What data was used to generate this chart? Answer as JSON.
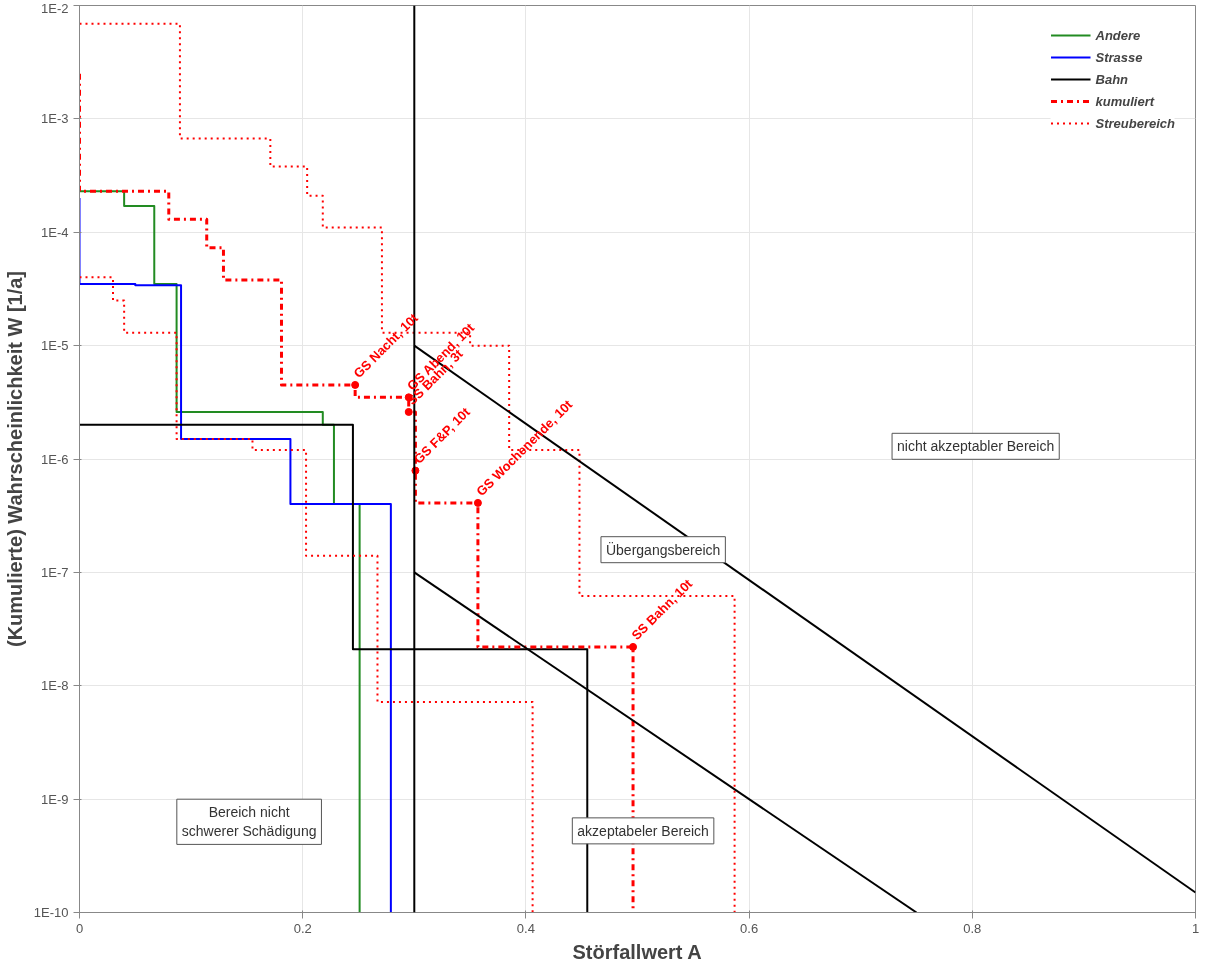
{
  "chart_data": {
    "type": "line",
    "xlabel": "Störfallwert A",
    "ylabel": "(Kumulierte) Wahrscheinlichkeit W [1/a]",
    "log": "y",
    "xlim": [
      0,
      1
    ],
    "ylim": [
      1e-10,
      0.01
    ],
    "xticks": [
      0,
      0.2,
      0.4,
      0.6,
      0.8,
      1
    ],
    "yticks": [
      {
        "value": 1e-10,
        "label": "1E-10"
      },
      {
        "value": 1e-09,
        "label": "1E-9"
      },
      {
        "value": 1e-08,
        "label": "1E-8"
      },
      {
        "value": 1e-07,
        "label": "1E-7"
      },
      {
        "value": 1e-06,
        "label": "1E-6"
      },
      {
        "value": 1e-05,
        "label": "1E-5"
      },
      {
        "value": 0.0001,
        "label": "1E-4"
      },
      {
        "value": 0.001,
        "label": "1E-3"
      },
      {
        "value": 0.01,
        "label": "1E-2"
      }
    ],
    "grid": true,
    "legend": "top right",
    "series": [
      {
        "name": "Andere",
        "color": "#228b22",
        "line_style": "solid",
        "x": [
          0,
          0.04,
          0.04,
          0.067,
          0.067,
          0.087,
          0.087,
          0.218,
          0.218,
          0.228,
          0.228,
          0.251,
          0.251
        ],
        "values": [
          0.00023,
          0.00023,
          0.00017,
          0.00017,
          3.5e-05,
          3.5e-05,
          2.6e-06,
          2.6e-06,
          2e-06,
          2e-06,
          4e-07,
          4e-07,
          1e-10
        ]
      },
      {
        "name": "Strasse",
        "color": "#0000ff",
        "line_style": "solid",
        "x": [
          0,
          0,
          0.05,
          0.05,
          0.091,
          0.091,
          0.189,
          0.189,
          0.279,
          0.279
        ],
        "values": [
          0.0002,
          3.5e-05,
          3.5e-05,
          3.4e-05,
          3.4e-05,
          1.5e-06,
          1.5e-06,
          4e-07,
          4e-07,
          1e-10
        ]
      },
      {
        "name": "Bahn",
        "color": "#000000",
        "line_style": "solid",
        "x": [
          0,
          0.245,
          0.245,
          0.455,
          0.455
        ],
        "values": [
          2e-06,
          2e-06,
          2.1e-08,
          2.1e-08,
          1e-10
        ]
      },
      {
        "name": "kumuliert",
        "color": "#ff0000",
        "line_style": "dashdot",
        "x": [
          0,
          0,
          0.08,
          0.08,
          0.114,
          0.114,
          0.129,
          0.129,
          0.181,
          0.181,
          0.247,
          0.247,
          0.295,
          0.295,
          0.301,
          0.301,
          0.301,
          0.357,
          0.357,
          0.496,
          0.496
        ],
        "values": [
          0.0025,
          0.00023,
          0.00023,
          0.00013,
          0.00013,
          7.3e-05,
          7.3e-05,
          3.8e-05,
          3.8e-05,
          4.5e-06,
          4.5e-06,
          3.5e-06,
          3.5e-06,
          2.6e-06,
          2.6e-06,
          7.9e-07,
          4.1e-07,
          4.1e-07,
          2.2e-08,
          2.2e-08,
          1e-10
        ]
      },
      {
        "name": "Streubereich",
        "color": "#ff0000",
        "line_style": "dotted",
        "x": [
          0,
          0.09,
          0.09,
          0.171,
          0.171,
          0.204,
          0.204,
          0.218,
          0.218,
          0.271,
          0.271,
          0.35,
          0.35,
          0.385,
          0.385,
          0.448,
          0.448,
          0.587,
          0.587
        ],
        "values": [
          0.0069,
          0.0069,
          0.00067,
          0.00067,
          0.00038,
          0.00038,
          0.00021,
          0.00021,
          0.00011,
          0.00011,
          1.3e-05,
          1.3e-05,
          1e-05,
          1e-05,
          1.2e-06,
          1.2e-06,
          6.2e-08,
          6.2e-08,
          1e-10
        ]
      },
      {
        "color": "#ff0000",
        "line_style": "dotted",
        "x": [
          0,
          0.03,
          0.03,
          0.04,
          0.04,
          0.087,
          0.087,
          0.155,
          0.155,
          0.203,
          0.203,
          0.267,
          0.267,
          0.406,
          0.406
        ],
        "values": [
          4e-05,
          4e-05,
          2.5e-05,
          2.5e-05,
          1.3e-05,
          1.3e-05,
          1.5e-06,
          1.5e-06,
          1.2e-06,
          1.2e-06,
          1.4e-07,
          1.4e-07,
          7.2e-09,
          7.2e-09,
          1e-10
        ]
      },
      {
        "color": "#000000",
        "line_style": "solid",
        "x": [
          0.3,
          1
        ],
        "values": [
          1e-05,
          1.5e-10
        ]
      },
      {
        "color": "#000000",
        "line_style": "solid",
        "x": [
          0.3,
          0.75
        ],
        "values": [
          1e-07,
          1e-10
        ]
      }
    ],
    "ref_lines": [
      {
        "axis": "x",
        "value": 0.3,
        "color": "#000000",
        "line_style": "solid"
      }
    ],
    "annotations": [
      {
        "text": "GS Nacht, 10t",
        "x": 0.247,
        "y": 4.5e-06
      },
      {
        "text": "GS Abend, 10t",
        "x": 0.295,
        "y": 3.5e-06
      },
      {
        "text": "SS Bahn, 3t",
        "x": 0.295,
        "y": 2.6e-06
      },
      {
        "text": "GS F&P, 10t",
        "x": 0.301,
        "y": 7.9e-07
      },
      {
        "text": "GS Wochenende, 10t",
        "x": 0.357,
        "y": 4.1e-07
      },
      {
        "text": "SS Bahn, 10t",
        "x": 0.496,
        "y": 2.2e-08
      },
      "nicht akzeptabler Bereich",
      "Übergangsbereich",
      "akzeptabeler Bereich",
      "Bereich nicht\nschwerer Schädigung"
    ]
  }
}
